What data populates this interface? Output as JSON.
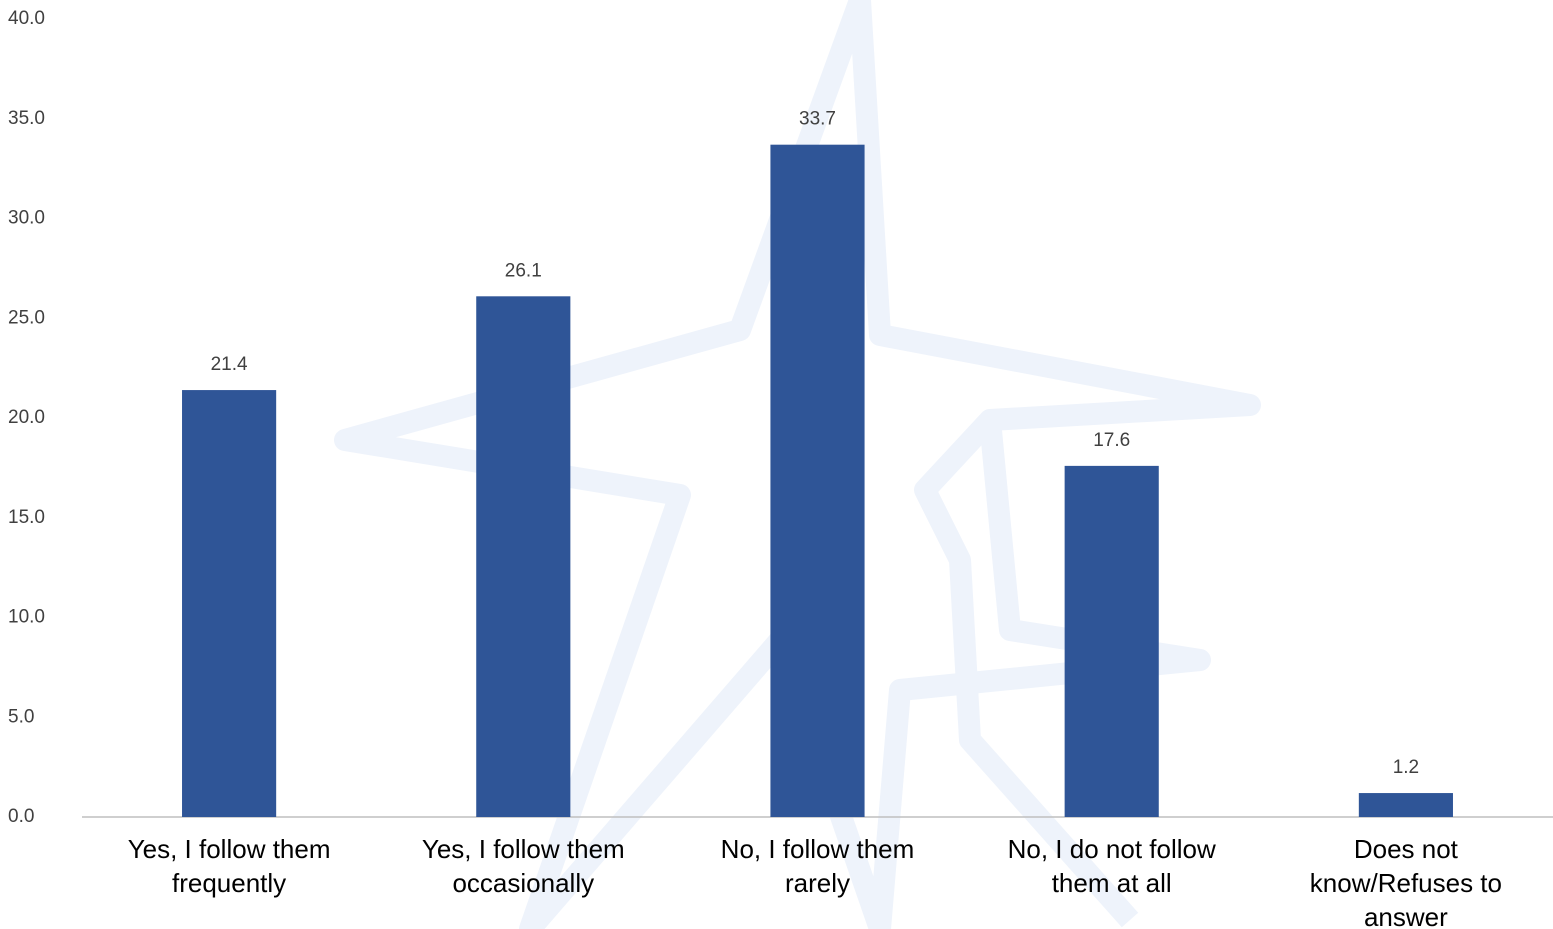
{
  "chart_data": {
    "type": "bar",
    "categories": [
      "Yes, I follow them frequently",
      "Yes, I follow them occasionally",
      "No, I follow them rarely",
      "No, I do not follow them at all",
      "Does not know/Refuses to answer"
    ],
    "values": [
      21.4,
      26.1,
      33.7,
      17.6,
      1.2
    ],
    "color": "#2f5597",
    "ylim": [
      0,
      40
    ],
    "yticks": [
      {
        "value": 0,
        "label": "0.0"
      },
      {
        "value": 5,
        "label": "5.0"
      },
      {
        "value": 10,
        "label": "10.0"
      },
      {
        "value": 15,
        "label": "15.0"
      },
      {
        "value": 20,
        "label": "20.0"
      },
      {
        "value": 25,
        "label": "25.0"
      },
      {
        "value": 30,
        "label": "30.0"
      },
      {
        "value": 35,
        "label": "35.0"
      },
      {
        "value": 40,
        "label": "40.0"
      }
    ],
    "grid": false
  }
}
